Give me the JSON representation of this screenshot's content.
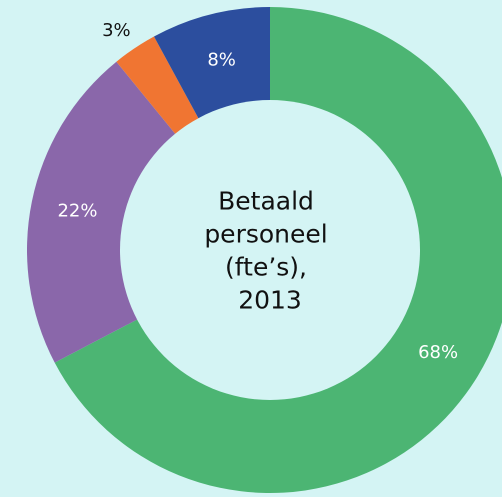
{
  "chart_data": {
    "type": "pie",
    "variant": "donut",
    "center_title_lines": [
      "Betaald",
      "personeel",
      "(fte’s),",
      "2013"
    ],
    "slices": [
      {
        "value": 68,
        "label": "68%",
        "color": "#4cb573",
        "label_color": "#ffffff"
      },
      {
        "value": 22,
        "label": "22%",
        "color": "#8a67aa",
        "label_color": "#ffffff"
      },
      {
        "value": 3,
        "label": "3%",
        "color": "#f07532",
        "label_color": "#111111"
      },
      {
        "value": 8,
        "label": "8%",
        "color": "#2c4e9e",
        "label_color": "#ffffff"
      }
    ],
    "legend": false
  },
  "colors": {
    "background": "#d4f4f4"
  }
}
